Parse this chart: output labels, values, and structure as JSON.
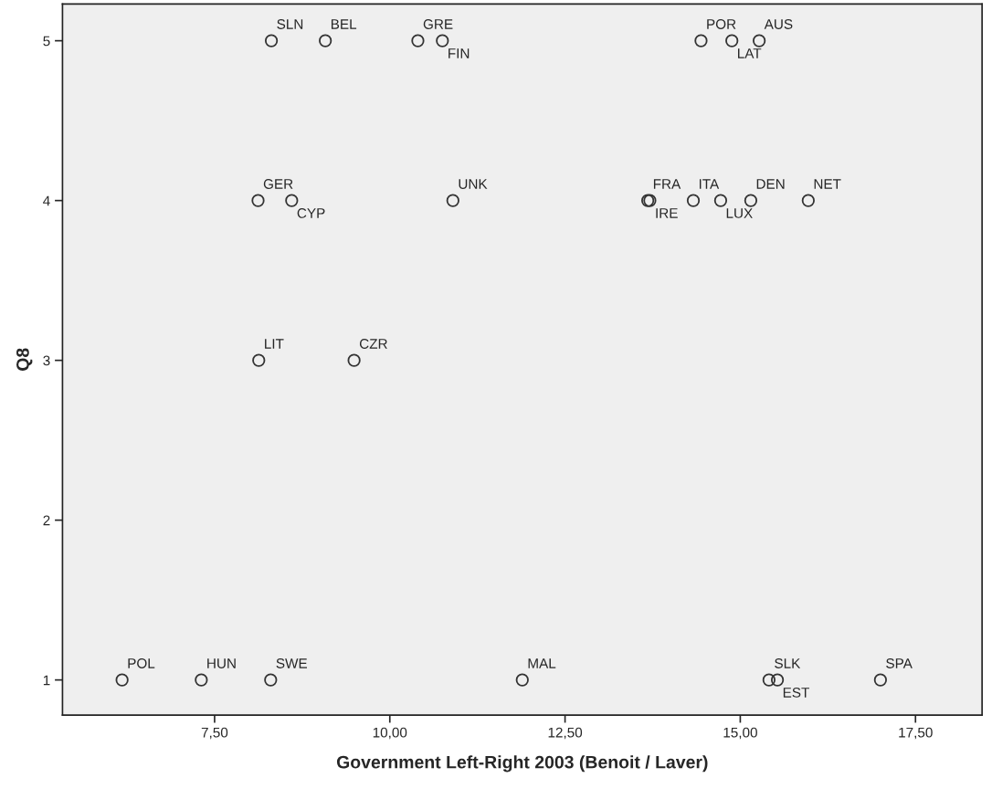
{
  "chart_data": {
    "type": "scatter",
    "xlabel": "Government Left-Right 2003 (Benoit / Laver)",
    "ylabel": "Q8",
    "x": [
      8.31,
      9.08,
      10.4,
      10.75,
      14.44,
      14.88,
      15.27,
      8.12,
      8.6,
      10.9,
      13.68,
      13.71,
      14.33,
      14.72,
      15.15,
      15.97,
      8.13,
      9.49,
      6.18,
      7.31,
      8.3,
      11.89,
      15.41,
      15.53,
      17.0
    ],
    "values": [
      5,
      5,
      5,
      5,
      5,
      5,
      5,
      4,
      4,
      4,
      4,
      4,
      4,
      4,
      4,
      4,
      3,
      3,
      1,
      1,
      1,
      1,
      1,
      1,
      1
    ],
    "color": "#333333",
    "marker": "circle",
    "annotations": [
      {
        "text": "SLN",
        "x": 8.31,
        "y": 5
      },
      {
        "text": "BEL",
        "x": 9.08,
        "y": 5
      },
      {
        "text": "GRE",
        "x": 10.4,
        "y": 5
      },
      {
        "text": "FIN",
        "x": 10.75,
        "y": 5
      },
      {
        "text": "POR",
        "x": 14.44,
        "y": 5
      },
      {
        "text": "LAT",
        "x": 14.88,
        "y": 5
      },
      {
        "text": "AUS",
        "x": 15.27,
        "y": 5
      },
      {
        "text": "GER",
        "x": 8.12,
        "y": 4
      },
      {
        "text": "CYP",
        "x": 8.6,
        "y": 4
      },
      {
        "text": "UNK",
        "x": 10.9,
        "y": 4
      },
      {
        "text": "FRA",
        "x": 13.68,
        "y": 4
      },
      {
        "text": "IRE",
        "x": 13.71,
        "y": 4
      },
      {
        "text": "ITA",
        "x": 14.33,
        "y": 4
      },
      {
        "text": "LUX",
        "x": 14.72,
        "y": 4
      },
      {
        "text": "DEN",
        "x": 15.15,
        "y": 4
      },
      {
        "text": "NET",
        "x": 15.97,
        "y": 4
      },
      {
        "text": "LIT",
        "x": 8.13,
        "y": 3
      },
      {
        "text": "CZR",
        "x": 9.49,
        "y": 3
      },
      {
        "text": "POL",
        "x": 6.18,
        "y": 1
      },
      {
        "text": "HUN",
        "x": 7.31,
        "y": 1
      },
      {
        "text": "SWE",
        "x": 8.3,
        "y": 1
      },
      {
        "text": "MAL",
        "x": 11.89,
        "y": 1
      },
      {
        "text": "SLK",
        "x": 15.41,
        "y": 1
      },
      {
        "text": "EST",
        "x": 15.53,
        "y": 1
      },
      {
        "text": "SPA",
        "x": 17.0,
        "y": 1
      }
    ],
    "xlim": [
      5.33,
      18.45
    ],
    "ylim": [
      0.78,
      5.23
    ],
    "xticks": [
      {
        "value": 7.5,
        "label": "7,50"
      },
      {
        "value": 10,
        "label": "10,00"
      },
      {
        "value": 12.5,
        "label": "12,50"
      },
      {
        "value": 15,
        "label": "15,00"
      },
      {
        "value": 17.5,
        "label": "17,50"
      }
    ],
    "yticks": [
      1,
      2,
      3,
      4,
      5
    ],
    "grid": false,
    "legend": false
  }
}
